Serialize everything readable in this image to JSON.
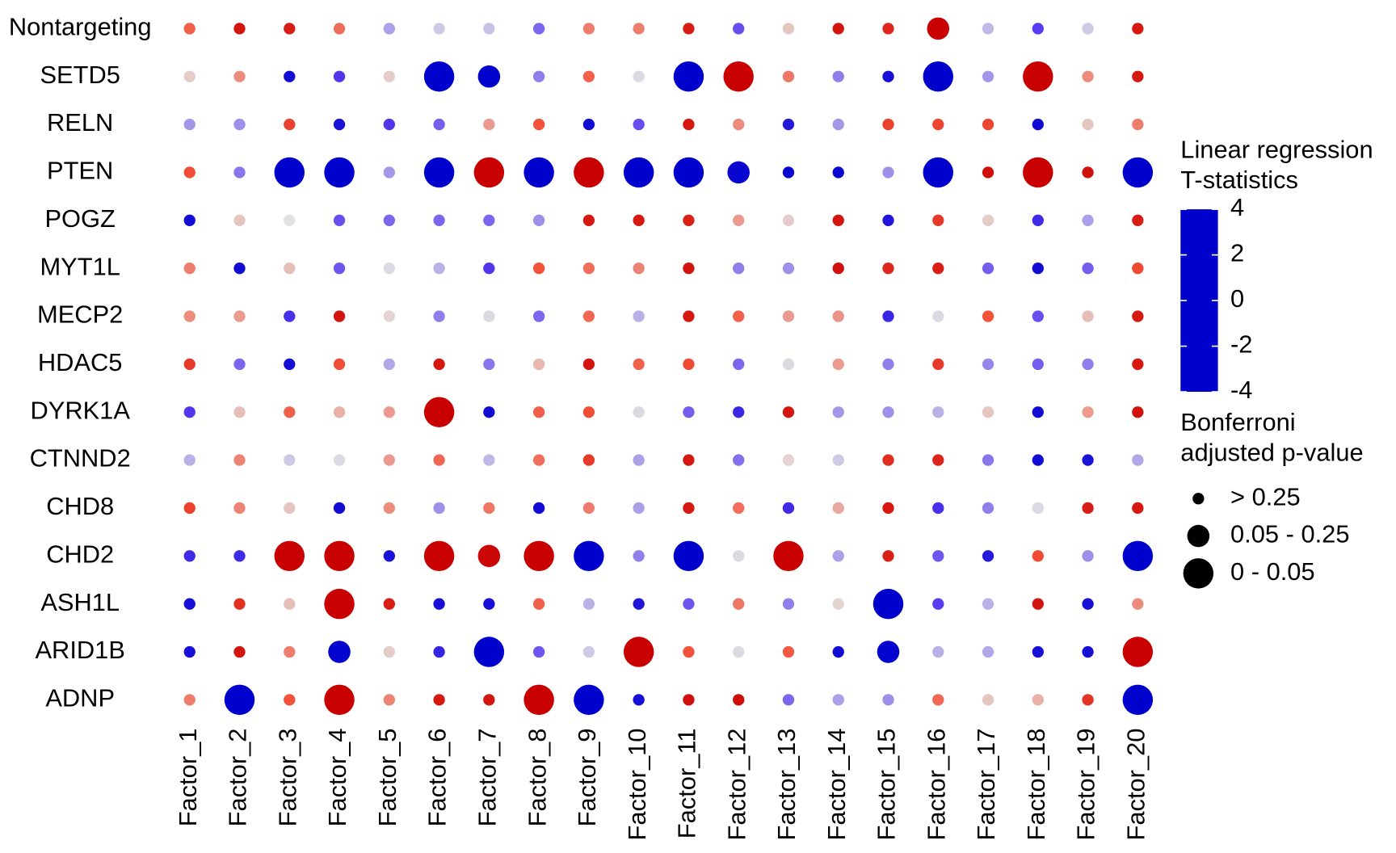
{
  "chart_data": {
    "type": "dotplot",
    "rows": [
      "Nontargeting",
      "SETD5",
      "RELN",
      "PTEN",
      "POGZ",
      "MYT1L",
      "MECP2",
      "HDAC5",
      "DYRK1A",
      "CTNND2",
      "CHD8",
      "CHD2",
      "ASH1L",
      "ARID1B",
      "ADNP"
    ],
    "columns": [
      "Factor_1",
      "Factor_2",
      "Factor_3",
      "Factor_4",
      "Factor_5",
      "Factor_6",
      "Factor_7",
      "Factor_8",
      "Factor_9",
      "Factor_10",
      "Factor_11",
      "Factor_12",
      "Factor_13",
      "Factor_14",
      "Factor_15",
      "Factor_16",
      "Factor_17",
      "Factor_18",
      "Factor_19",
      "Factor_20"
    ],
    "values": [
      [
        1.8,
        3.5,
        3.3,
        1.6,
        -0.8,
        -0.3,
        -0.4,
        -1.5,
        1.4,
        1.4,
        3.3,
        -1.8,
        0.4,
        3.5,
        3,
        4,
        -0.5,
        -2,
        -0.3,
        3.4
      ],
      [
        0.3,
        1.2,
        -3.6,
        -2.2,
        0.3,
        -4,
        -4,
        -1.2,
        1.8,
        -0.1,
        -4,
        4,
        1.5,
        -1.2,
        -3.5,
        -4,
        -0.9,
        4,
        1.2,
        3.4
      ],
      [
        -0.9,
        -1,
        2.4,
        -3.4,
        -2.2,
        -1.6,
        1,
        2,
        -3.6,
        -1.8,
        3.4,
        1.2,
        -3.2,
        -0.9,
        2.4,
        2.3,
        2.3,
        -3.6,
        0.4,
        1.4
      ],
      [
        2.1,
        -1.3,
        -4,
        -4,
        -0.9,
        -4,
        4,
        -4,
        4,
        -4,
        -4,
        -3.8,
        -3.8,
        -3.8,
        -1,
        -4,
        3.6,
        4,
        3.6,
        -4
      ],
      [
        -3.6,
        0.4,
        0,
        -1.8,
        -1.5,
        -1.5,
        -1.5,
        -1,
        3.4,
        3.4,
        3.2,
        1,
        0.3,
        3.5,
        -3.3,
        2.6,
        0.3,
        -2.6,
        -0.8,
        3.3
      ],
      [
        1.4,
        -3.6,
        0.5,
        -1.7,
        -0.1,
        -0.6,
        -2.2,
        2,
        1.6,
        1.3,
        3.5,
        -1.2,
        -1,
        3.6,
        3,
        3.3,
        -1.6,
        -3.6,
        -1.6,
        2.2
      ],
      [
        1.2,
        1,
        -2.4,
        3.5,
        0.2,
        -1.2,
        -0.1,
        -1.5,
        1.7,
        -0.6,
        3.4,
        1.8,
        1,
        1.1,
        -2.7,
        -0.1,
        2,
        -1.8,
        0.5,
        3.4
      ],
      [
        2.6,
        -1.5,
        -3.5,
        2.1,
        -0.7,
        3.4,
        -1.3,
        0.6,
        3.5,
        1.8,
        2.2,
        -1.5,
        -0.1,
        1,
        -1.2,
        2.6,
        -1.1,
        -1.6,
        -1.2,
        3.4
      ],
      [
        -2.2,
        0.5,
        1.8,
        0.7,
        1,
        4,
        -3.6,
        1.8,
        2.1,
        -0.1,
        -1.6,
        -2.7,
        3.5,
        -0.9,
        -1,
        -0.6,
        0.4,
        -3.6,
        1,
        3.6
      ],
      [
        -0.6,
        1.3,
        -0.3,
        -0.1,
        1,
        1.7,
        -0.5,
        1.6,
        2.6,
        -0.8,
        3.4,
        -1.4,
        0.2,
        -0.3,
        2.9,
        3.1,
        -1.3,
        -3.6,
        -3.4,
        -0.7
      ],
      [
        2.4,
        1.3,
        0.4,
        -3.6,
        1.2,
        -1,
        1.5,
        -3.6,
        1.4,
        -0.8,
        3.4,
        1.6,
        -2.6,
        0.8,
        3.4,
        -2.4,
        -1.2,
        -0.1,
        3.3,
        3.4
      ],
      [
        -2.6,
        -2.6,
        4,
        4,
        -3.4,
        4,
        3.8,
        4,
        -4,
        -1.2,
        -4,
        -0.1,
        4,
        -0.8,
        3.2,
        -1.7,
        -3.2,
        2.2,
        -1,
        -4
      ],
      [
        -3.5,
        2.8,
        0.5,
        4,
        3.3,
        -3.5,
        -3.5,
        1.8,
        -0.6,
        -3.3,
        -1.7,
        1.5,
        -1.2,
        0.2,
        -4,
        -2,
        -0.6,
        3.5,
        -3.5,
        1.2
      ],
      [
        -3.5,
        3.5,
        1.4,
        -3.9,
        0.3,
        -2.8,
        -4,
        -1.7,
        -0.3,
        4,
        2,
        -0.1,
        1.9,
        -3.6,
        -3.9,
        -0.6,
        -0.7,
        -3.5,
        -3.5,
        4
      ],
      [
        1.4,
        -4,
        2,
        4,
        1.3,
        3.4,
        3.5,
        4,
        -4,
        -3.5,
        3.6,
        3.7,
        -1.5,
        -0.8,
        -1,
        1.7,
        0.4,
        0.7,
        2.7,
        -4
      ]
    ],
    "p_level": [
      [
        0,
        0,
        0,
        0,
        0,
        0,
        0,
        0,
        0,
        0,
        0,
        0,
        0,
        0,
        0,
        1,
        0,
        0,
        0,
        0
      ],
      [
        0,
        0,
        0,
        0,
        0,
        2,
        1,
        0,
        0,
        0,
        2,
        2,
        0,
        0,
        0,
        2,
        0,
        2,
        0,
        0
      ],
      [
        0,
        0,
        0,
        0,
        0,
        0,
        0,
        0,
        0,
        0,
        0,
        0,
        0,
        0,
        0,
        0,
        0,
        0,
        0,
        0
      ],
      [
        0,
        0,
        2,
        2,
        0,
        2,
        2,
        2,
        2,
        2,
        2,
        1,
        0,
        0,
        0,
        2,
        0,
        2,
        0,
        2
      ],
      [
        0,
        0,
        0,
        0,
        0,
        0,
        0,
        0,
        0,
        0,
        0,
        0,
        0,
        0,
        0,
        0,
        0,
        0,
        0,
        0
      ],
      [
        0,
        0,
        0,
        0,
        0,
        0,
        0,
        0,
        0,
        0,
        0,
        0,
        0,
        0,
        0,
        0,
        0,
        0,
        0,
        0
      ],
      [
        0,
        0,
        0,
        0,
        0,
        0,
        0,
        0,
        0,
        0,
        0,
        0,
        0,
        0,
        0,
        0,
        0,
        0,
        0,
        0
      ],
      [
        0,
        0,
        0,
        0,
        0,
        0,
        0,
        0,
        0,
        0,
        0,
        0,
        0,
        0,
        0,
        0,
        0,
        0,
        0,
        0
      ],
      [
        0,
        0,
        0,
        0,
        0,
        2,
        0,
        0,
        0,
        0,
        0,
        0,
        0,
        0,
        0,
        0,
        0,
        0,
        0,
        0
      ],
      [
        0,
        0,
        0,
        0,
        0,
        0,
        0,
        0,
        0,
        0,
        0,
        0,
        0,
        0,
        0,
        0,
        0,
        0,
        0,
        0
      ],
      [
        0,
        0,
        0,
        0,
        0,
        0,
        0,
        0,
        0,
        0,
        0,
        0,
        0,
        0,
        0,
        0,
        0,
        0,
        0,
        0
      ],
      [
        0,
        0,
        2,
        2,
        0,
        2,
        1,
        2,
        2,
        0,
        2,
        0,
        2,
        0,
        0,
        0,
        0,
        0,
        0,
        2
      ],
      [
        0,
        0,
        0,
        2,
        0,
        0,
        0,
        0,
        0,
        0,
        0,
        0,
        0,
        0,
        2,
        0,
        0,
        0,
        0,
        0
      ],
      [
        0,
        0,
        0,
        1,
        0,
        0,
        2,
        0,
        0,
        2,
        0,
        0,
        0,
        0,
        1,
        0,
        0,
        0,
        0,
        2
      ],
      [
        0,
        2,
        0,
        2,
        0,
        0,
        0,
        2,
        2,
        0,
        0,
        0,
        0,
        0,
        0,
        0,
        0,
        0,
        0,
        2
      ]
    ],
    "color_legend_title": [
      "Linear regression",
      "T-statistics"
    ],
    "clim": [
      -4,
      4
    ],
    "colorbar_ticks": [
      4,
      2,
      0,
      -2,
      -4
    ],
    "color_scale": [
      {
        "value": -4,
        "color": "#0000cc"
      },
      {
        "value": -2,
        "color": "#5a3cf0"
      },
      {
        "value": 0,
        "color": "#e2e2e2"
      },
      {
        "value": 2,
        "color": "#f2523a"
      },
      {
        "value": 4,
        "color": "#c80000"
      }
    ],
    "size_legend_title": [
      "Bonferroni",
      "adjusted p-value"
    ],
    "size_levels": [
      "> 0.25",
      "0.05 - 0.25",
      "0 - 0.05"
    ]
  }
}
